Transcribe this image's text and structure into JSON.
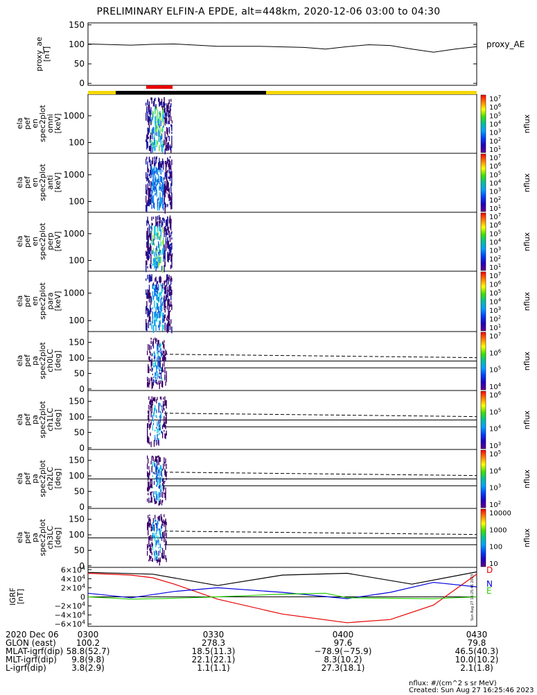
{
  "title": "PRELIMINARY ELFIN-A EPDE, alt=448km, 2020-12-06 03:00 to 04:30",
  "colors": {
    "yellow": "#f5d700",
    "black": "#000000",
    "red": "#e60000",
    "blue": "#0000dd",
    "green": "#22cc00"
  },
  "panels": [
    {
      "id": "proxy",
      "ylabel": [
        "proxy_ae",
        "[nT]"
      ],
      "legend": "proxy_AE",
      "yticks": [
        "150",
        "100",
        "50",
        "0"
      ]
    },
    {
      "id": "omni",
      "ylabel": [
        "ela",
        "pef",
        "en",
        "spec2plot",
        "omni",
        "[keV]"
      ],
      "yticks": [
        "1000",
        "100"
      ],
      "cb_label": "nflux",
      "cb_ticks": [
        {
          "b": "10",
          "e": "7"
        },
        {
          "b": "10",
          "e": "6"
        },
        {
          "b": "10",
          "e": "5"
        },
        {
          "b": "10",
          "e": "4"
        },
        {
          "b": "10",
          "e": "3"
        },
        {
          "b": "10",
          "e": "2"
        },
        {
          "b": "10",
          "e": "1"
        }
      ]
    },
    {
      "id": "anti",
      "ylabel": [
        "ela",
        "pef",
        "en",
        "spec2plot",
        "anti",
        "[keV]"
      ],
      "yticks": [
        "1000",
        "100"
      ],
      "cb_label": "nflux",
      "cb_ticks": [
        {
          "b": "10",
          "e": "7"
        },
        {
          "b": "10",
          "e": "6"
        },
        {
          "b": "10",
          "e": "5"
        },
        {
          "b": "10",
          "e": "4"
        },
        {
          "b": "10",
          "e": "3"
        },
        {
          "b": "10",
          "e": "2"
        },
        {
          "b": "10",
          "e": "1"
        }
      ]
    },
    {
      "id": "perp",
      "ylabel": [
        "ela",
        "pef",
        "en",
        "spec2plot",
        "perp",
        "[keV]"
      ],
      "yticks": [
        "1000",
        "100"
      ],
      "cb_label": "nflux",
      "cb_ticks": [
        {
          "b": "10",
          "e": "7"
        },
        {
          "b": "10",
          "e": "6"
        },
        {
          "b": "10",
          "e": "5"
        },
        {
          "b": "10",
          "e": "4"
        },
        {
          "b": "10",
          "e": "3"
        },
        {
          "b": "10",
          "e": "2"
        },
        {
          "b": "10",
          "e": "1"
        }
      ]
    },
    {
      "id": "para",
      "ylabel": [
        "ela",
        "pef",
        "en",
        "spec2plot",
        "para",
        "[keV]"
      ],
      "yticks": [
        "1000",
        "100"
      ],
      "cb_label": "nflux",
      "cb_ticks": [
        {
          "b": "10",
          "e": "7"
        },
        {
          "b": "10",
          "e": "6"
        },
        {
          "b": "10",
          "e": "5"
        },
        {
          "b": "10",
          "e": "4"
        },
        {
          "b": "10",
          "e": "3"
        },
        {
          "b": "10",
          "e": "2"
        },
        {
          "b": "10",
          "e": "1"
        }
      ]
    },
    {
      "id": "ch0",
      "ylabel": [
        "ela",
        "pef",
        "pa",
        "spec2plot",
        "ch0LC",
        "[deg]"
      ],
      "yticks": [
        "150",
        "100",
        "50",
        "0"
      ],
      "cb_label": "nflux",
      "cb_ticks": [
        {
          "b": "10",
          "e": "7"
        },
        {
          "b": "10",
          "e": "6"
        },
        {
          "b": "10",
          "e": "5"
        },
        {
          "b": "10",
          "e": "4"
        }
      ]
    },
    {
      "id": "ch1",
      "ylabel": [
        "ela",
        "pef",
        "pa",
        "spec2plot",
        "ch1LC",
        "[deg]"
      ],
      "yticks": [
        "150",
        "100",
        "50",
        "0"
      ],
      "cb_label": "nflux",
      "cb_ticks": [
        {
          "b": "10",
          "e": "6"
        },
        {
          "b": "10",
          "e": "5"
        },
        {
          "b": "10",
          "e": "4"
        },
        {
          "b": "10",
          "e": "3"
        }
      ]
    },
    {
      "id": "ch2",
      "ylabel": [
        "ela",
        "pef",
        "pa",
        "spec2plot",
        "ch2LC",
        "[deg]"
      ],
      "yticks": [
        "150",
        "100",
        "50",
        "0"
      ],
      "cb_label": "nflux",
      "cb_ticks": [
        {
          "b": "10",
          "e": "5"
        },
        {
          "b": "10",
          "e": "4"
        },
        {
          "b": "10",
          "e": "3"
        },
        {
          "b": "10",
          "e": "2"
        }
      ]
    },
    {
      "id": "ch3",
      "ylabel": [
        "ela",
        "pef",
        "pa",
        "spec2plot",
        "ch3LC",
        "[deg]"
      ],
      "yticks": [
        "150",
        "100",
        "50",
        "0"
      ],
      "cb_label": "nflux",
      "cb_ticks": [
        {
          "t": "10000"
        },
        {
          "t": "1000"
        },
        {
          "t": "100"
        },
        {
          "t": "10"
        }
      ]
    },
    {
      "id": "igrf",
      "ylabel": [
        "IGRF",
        "[nT]"
      ],
      "yticks": [
        {
          "b": "6×10",
          "e": "4"
        },
        {
          "b": "4×10",
          "e": "4"
        },
        {
          "b": "2×10",
          "e": "4"
        },
        {
          "b": "0",
          "e": ""
        },
        {
          "b": "−2×10",
          "e": "4"
        },
        {
          "b": "−4×10",
          "e": "4"
        },
        {
          "b": "−6×10",
          "e": "4"
        }
      ],
      "legend": [
        "D",
        "N",
        "E"
      ]
    }
  ],
  "chart_data": [
    {
      "type": "line",
      "title": "PRELIMINARY ELFIN-A EPDE, alt=448km, 2020-12-06 03:00 to 04:30",
      "ylabel": "proxy_ae [nT]",
      "ylim": [
        -5,
        155
      ],
      "series": [
        {
          "name": "proxy_AE",
          "x": [
            "0300",
            "0310",
            "0315",
            "0320",
            "0330",
            "0340",
            "0350",
            "0355",
            "0400",
            "0405",
            "0410",
            "0415",
            "0420",
            "0425",
            "0430"
          ],
          "values": [
            101,
            98,
            100,
            101,
            95,
            95,
            92,
            88,
            94,
            99,
            97,
            88,
            80,
            88,
            94
          ]
        }
      ]
    },
    {
      "type": "line",
      "ylabel": "IGRF [nT]",
      "ylim": [
        -65000,
        65000
      ],
      "series": [
        {
          "name": "D",
          "x": [
            "0300",
            "0310",
            "0315",
            "0320",
            "0330",
            "0345",
            "0400",
            "0410",
            "0420",
            "0430"
          ],
          "values": [
            52000,
            48000,
            42000,
            28000,
            -5000,
            -38000,
            -57000,
            -50000,
            -18000,
            50000
          ]
        },
        {
          "name": "N",
          "x": [
            "0300",
            "0310",
            "0320",
            "0330",
            "0345",
            "0400",
            "0410",
            "0420",
            "0430"
          ],
          "values": [
            8000,
            -2000,
            12000,
            20000,
            10000,
            -4000,
            10000,
            32000,
            22000
          ]
        },
        {
          "name": "E",
          "x": [
            "0300",
            "0310",
            "0320",
            "0330",
            "0345",
            "0355",
            "0400",
            "0410",
            "0420",
            "0430"
          ],
          "values": [
            0,
            -5000,
            -3000,
            0,
            6000,
            8000,
            -2000,
            -3000,
            -4000,
            0
          ]
        },
        {
          "name": "",
          "x": [
            "0300",
            "0315",
            "0330",
            "0345",
            "0400",
            "0415",
            "0430"
          ],
          "values": [
            54000,
            50000,
            25000,
            48000,
            52000,
            28000,
            55000
          ]
        }
      ]
    }
  ],
  "footer": {
    "rows": [
      {
        "label": "2020 Dec 06",
        "vals": [
          "0300",
          "0330",
          "0400",
          "0430"
        ]
      },
      {
        "label": "GLON (east)",
        "vals": [
          "100.2",
          "278.3",
          "97.6",
          "79.8"
        ]
      },
      {
        "label": "MLAT-igrf(dip)",
        "vals": [
          "58.8(52.7)",
          "18.5(11.3)",
          "−78.9(−75.9)",
          "46.5(40.3)"
        ]
      },
      {
        "label": "MLT-igrf(dip)",
        "vals": [
          "9.8(9.8)",
          "22.1(22.1)",
          "8.3(10.2)",
          "10.0(10.2)"
        ]
      },
      {
        "label": "L-igrf(dip)",
        "vals": [
          "3.8(2.9)",
          "1.1(1.1)",
          "27.3(18.1)",
          "2.1(1.8)"
        ]
      }
    ],
    "units": "nflux: #/(cm^2 s sr MeV)",
    "created": "Created: Sun Aug 27 16:25:46 2023",
    "side_stamp": "Sun Aug 27 16:25:46 2023"
  }
}
